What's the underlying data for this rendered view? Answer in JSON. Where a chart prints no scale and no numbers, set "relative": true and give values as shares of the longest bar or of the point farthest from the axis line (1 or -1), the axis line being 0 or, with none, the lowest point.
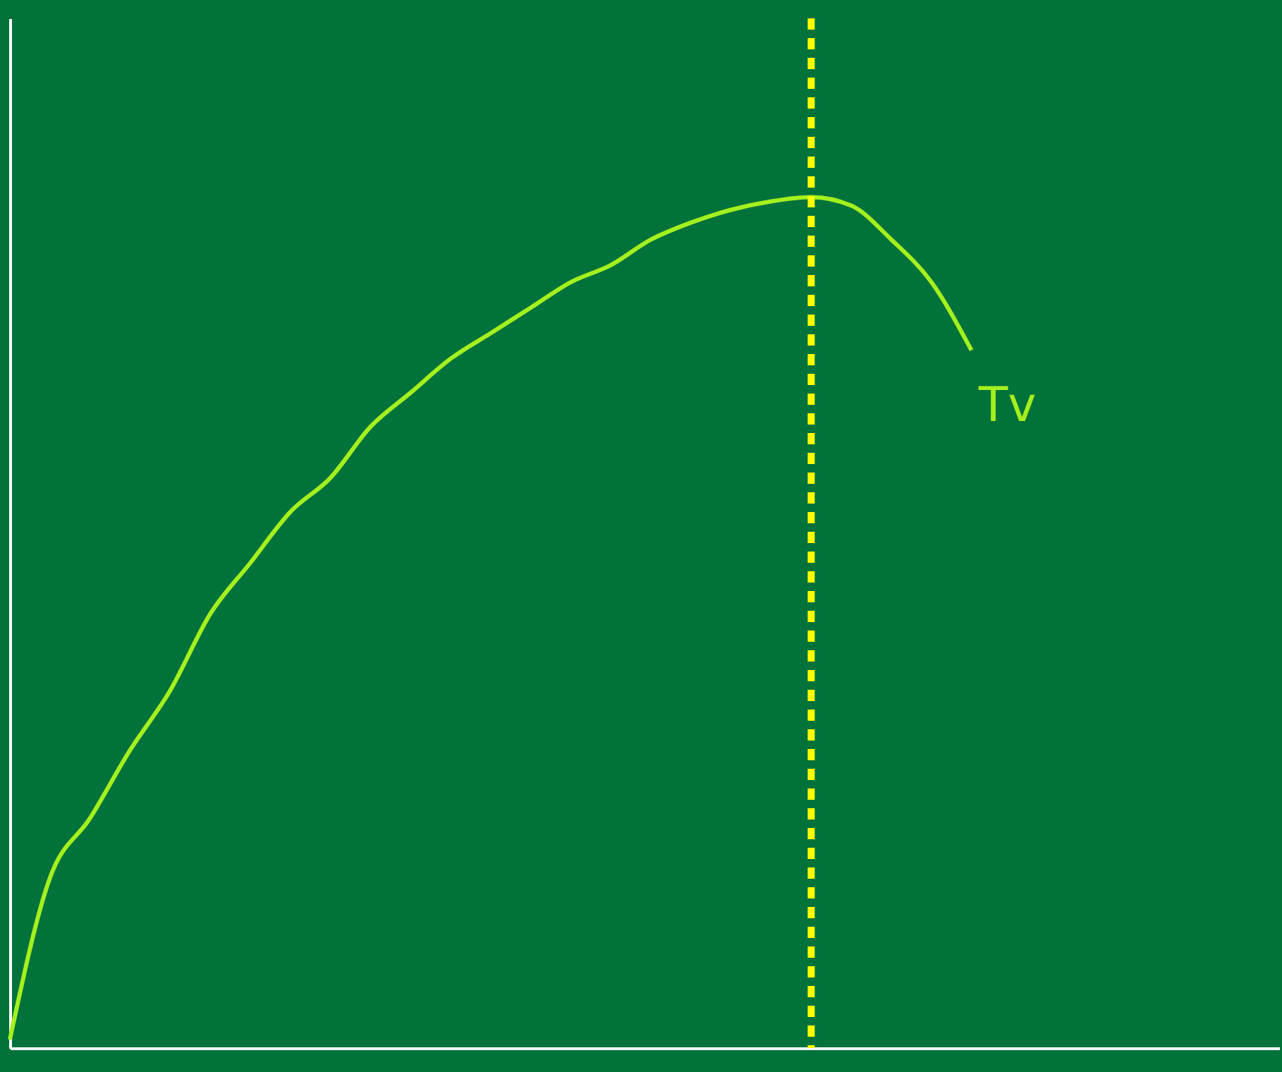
{
  "chart_data": {
    "type": "line",
    "relative": true,
    "categories": [
      null,
      null,
      null,
      null,
      null,
      null,
      null,
      null,
      null,
      null,
      null,
      null,
      null,
      null,
      null,
      null,
      null,
      null,
      null,
      null,
      null,
      null,
      null,
      null,
      null
    ],
    "series": [
      {
        "color": "#a4f01e",
        "values": [
          0.01,
          0.2,
          0.27,
          0.35,
          0.42,
          0.51,
          0.57,
          0.63,
          0.67,
          0.73,
          0.77,
          0.81,
          0.84,
          0.87,
          0.9,
          0.92,
          0.95,
          0.97,
          0.985,
          0.995,
          1,
          0.99,
          0.95,
          0.9,
          0.82
        ]
      }
    ],
    "annotations": [
      "Tv"
    ],
    "grid": false,
    "marker": "none",
    "line_style": "solid"
  }
}
